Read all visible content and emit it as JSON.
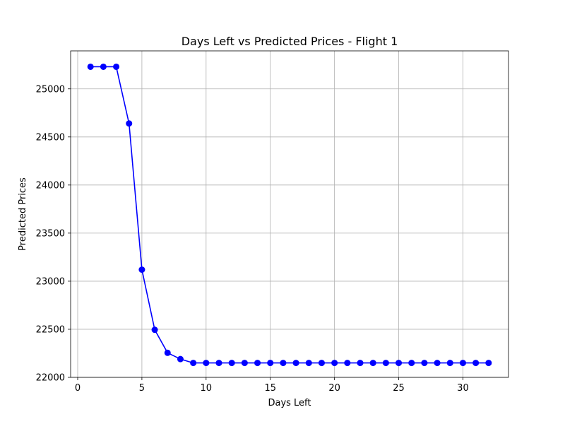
{
  "chart_data": {
    "type": "line",
    "title": "Days Left vs Predicted Prices - Flight 1",
    "xlabel": "Days Left",
    "ylabel": "Predicted Prices",
    "xlim": [
      -0.55,
      33.55
    ],
    "ylim": [
      22000,
      25395
    ],
    "x_ticks": [
      0,
      5,
      10,
      15,
      20,
      25,
      30
    ],
    "y_ticks": [
      22000,
      22500,
      23000,
      23500,
      24000,
      24500,
      25000
    ],
    "grid": true,
    "marker": "circle",
    "line_color": "#0000ff",
    "series": [
      {
        "x": [
          1,
          2,
          3,
          4,
          5,
          6,
          7,
          8,
          9,
          10,
          11,
          12,
          13,
          14,
          15,
          16,
          17,
          18,
          19,
          20,
          21,
          22,
          23,
          24,
          25,
          26,
          27,
          28,
          29,
          30,
          31,
          32
        ],
        "values": [
          25230,
          25230,
          25230,
          24640,
          23120,
          22495,
          22255,
          22190,
          22150,
          22150,
          22150,
          22150,
          22150,
          22150,
          22150,
          22150,
          22150,
          22150,
          22150,
          22150,
          22150,
          22150,
          22150,
          22150,
          22150,
          22150,
          22150,
          22150,
          22150,
          22150,
          22150,
          22150
        ]
      }
    ]
  }
}
